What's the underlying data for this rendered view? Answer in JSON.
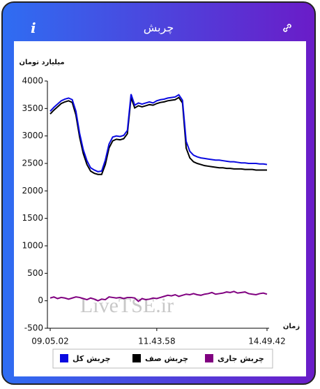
{
  "header": {
    "title": "چربش",
    "info": "i"
  },
  "watermark": "LiveTSE.ir",
  "chart_data": {
    "type": "line",
    "y_label": "میلیارد تومان",
    "x_label": "زمان",
    "categories": [
      "09.05.02",
      null,
      null,
      null,
      null,
      null,
      null,
      null,
      null,
      null,
      null,
      null,
      null,
      null,
      null,
      null,
      null,
      null,
      null,
      null,
      null,
      null,
      null,
      null,
      null,
      null,
      null,
      null,
      null,
      "11.43.58",
      null,
      null,
      null,
      null,
      null,
      null,
      null,
      null,
      null,
      null,
      null,
      null,
      null,
      null,
      null,
      null,
      null,
      null,
      null,
      null,
      null,
      null,
      null,
      null,
      null,
      null,
      null,
      null,
      null,
      "14.49.42"
    ],
    "series": [
      {
        "name": "چربش کل",
        "color": "#0a0ae0",
        "values": [
          3450,
          3520,
          3580,
          3640,
          3670,
          3690,
          3660,
          3450,
          3050,
          2750,
          2550,
          2420,
          2380,
          2350,
          2360,
          2560,
          2850,
          2980,
          3000,
          2990,
          3010,
          3100,
          3760,
          3560,
          3600,
          3580,
          3600,
          3620,
          3600,
          3640,
          3660,
          3670,
          3690,
          3700,
          3710,
          3750,
          3650,
          2900,
          2720,
          2650,
          2620,
          2600,
          2590,
          2580,
          2570,
          2560,
          2560,
          2550,
          2540,
          2530,
          2530,
          2520,
          2510,
          2510,
          2500,
          2500,
          2500,
          2490,
          2490,
          2480
        ]
      },
      {
        "name": "چربش صف",
        "color": "#000000",
        "values": [
          3400,
          3470,
          3530,
          3590,
          3620,
          3640,
          3610,
          3380,
          2980,
          2680,
          2480,
          2360,
          2320,
          2300,
          2300,
          2480,
          2780,
          2910,
          2940,
          2930,
          2950,
          3040,
          3700,
          3510,
          3550,
          3530,
          3550,
          3570,
          3560,
          3590,
          3610,
          3620,
          3640,
          3650,
          3660,
          3700,
          3600,
          2780,
          2600,
          2530,
          2500,
          2480,
          2460,
          2450,
          2440,
          2430,
          2420,
          2420,
          2410,
          2410,
          2400,
          2400,
          2400,
          2390,
          2390,
          2390,
          2380,
          2380,
          2380,
          2380
        ]
      },
      {
        "name": "چربش جاری",
        "color": "#800080",
        "values": [
          50,
          70,
          40,
          60,
          50,
          30,
          50,
          70,
          60,
          40,
          20,
          50,
          30,
          0,
          30,
          20,
          70,
          60,
          50,
          60,
          40,
          60,
          60,
          50,
          -10,
          40,
          20,
          30,
          50,
          40,
          60,
          80,
          100,
          90,
          110,
          80,
          100,
          120,
          110,
          130,
          110,
          100,
          120,
          130,
          150,
          120,
          130,
          140,
          160,
          150,
          170,
          140,
          150,
          160,
          130,
          120,
          110,
          130,
          140,
          120
        ]
      }
    ],
    "ylim": [
      -500,
      4000
    ],
    "yticks": [
      -500,
      0,
      500,
      1000,
      1500,
      2000,
      2500,
      3000,
      3500,
      4000
    ],
    "grid": false
  }
}
